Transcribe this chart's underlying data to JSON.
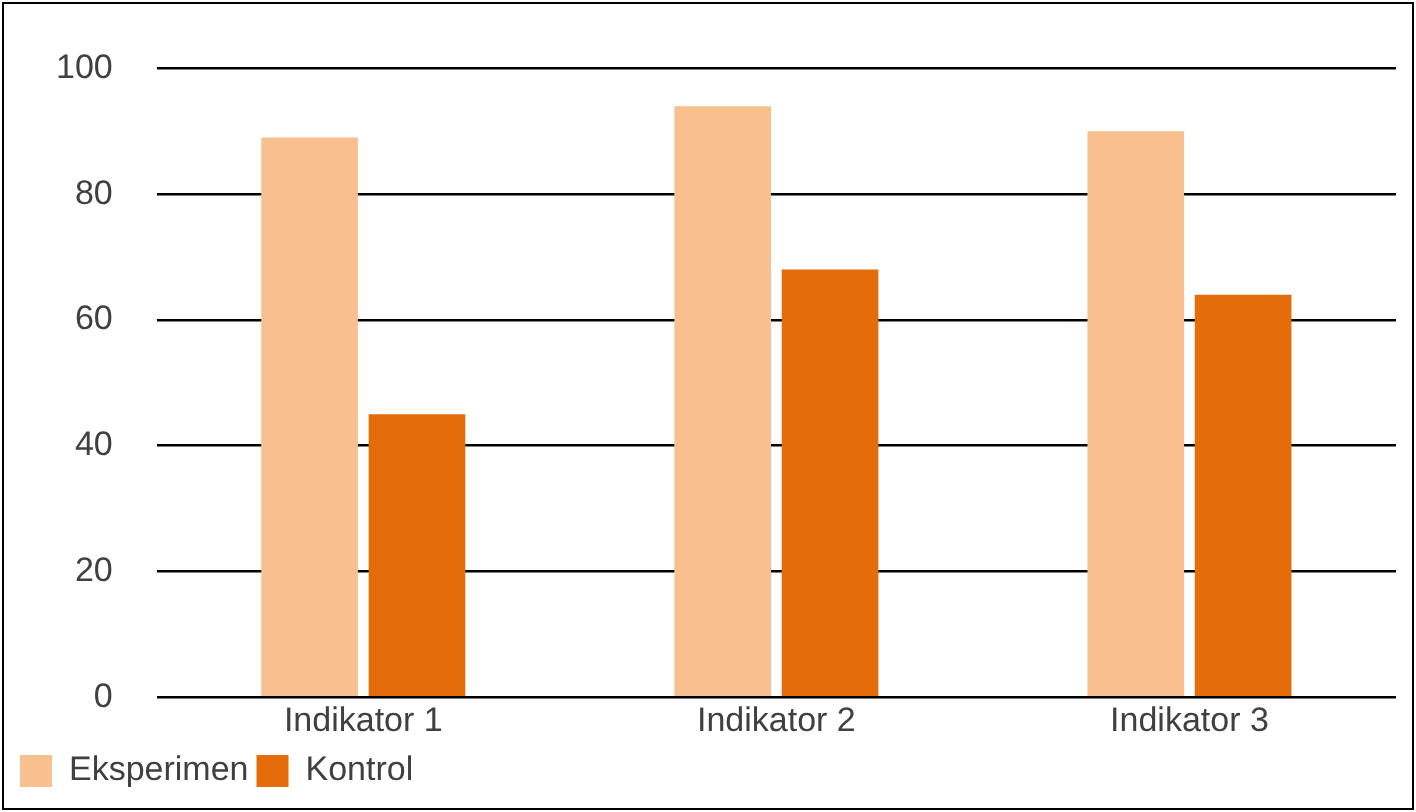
{
  "chart_data": {
    "type": "bar",
    "categories": [
      "Indikator 1",
      "Indikator 2",
      "Indikator 3"
    ],
    "series": [
      {
        "name": "Eksperimen",
        "color": "#f9c08f",
        "values": [
          89,
          94,
          90
        ]
      },
      {
        "name": "Kontrol",
        "color": "#e46c0a",
        "values": [
          45,
          68,
          64
        ]
      }
    ],
    "ylim": [
      0,
      100
    ],
    "yticks": [
      0,
      20,
      40,
      60,
      80,
      100
    ],
    "grid": "y",
    "legend": "bottom left"
  }
}
